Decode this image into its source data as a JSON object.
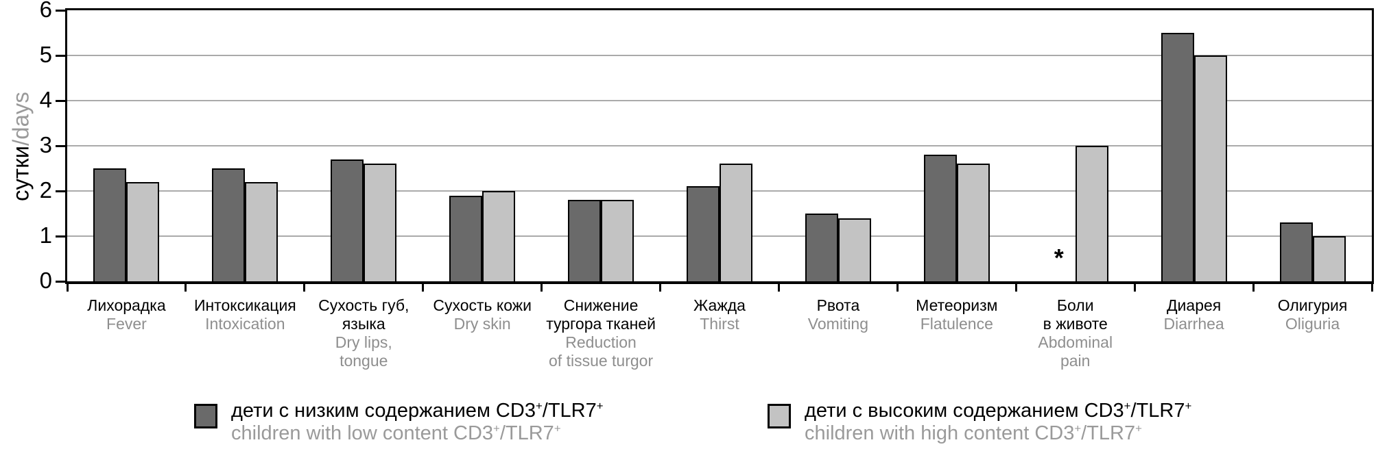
{
  "colors": {
    "series_low": "#6a6a6a",
    "series_high": "#c3c3c3",
    "grid": "#aaaaaa",
    "axis": "#000000",
    "text_primary": "#000000",
    "text_secondary": "#8e8e8e"
  },
  "y_axis": {
    "title_ru": "сутки",
    "title_en": "/days"
  },
  "chart_data": {
    "type": "bar",
    "ylim": [
      0,
      6
    ],
    "yticks": [
      0,
      1,
      2,
      3,
      4,
      5,
      6
    ],
    "grid": true,
    "legend_position": "bottom",
    "ylabel": "сутки/days",
    "categories": [
      {
        "ru": "Лихорадка",
        "en": "Fever"
      },
      {
        "ru": "Интоксикация",
        "en": "Intoxication"
      },
      {
        "ru": "Сухость губ,\nязыка",
        "en": "Dry lips,\ntongue"
      },
      {
        "ru": "Сухость кожи",
        "en": "Dry skin"
      },
      {
        "ru": "Снижение\nтургора тканей",
        "en": "Reduction\nof tissue turgor"
      },
      {
        "ru": "Жажда",
        "en": "Thirst"
      },
      {
        "ru": "Рвота",
        "en": "Vomiting"
      },
      {
        "ru": "Метеоризм",
        "en": "Flatulence"
      },
      {
        "ru": "Боли\nв животе",
        "en": "Abdominal\npain"
      },
      {
        "ru": "Диарея",
        "en": "Diarrhea"
      },
      {
        "ru": "Олигурия",
        "en": "Oliguria"
      }
    ],
    "series": [
      {
        "name_ru": "дети с низким содержанием CD3+/TLR7+",
        "name_en": "children with low content CD3+/TLR7+",
        "color": "#6a6a6a",
        "values": [
          2.5,
          2.5,
          2.7,
          1.9,
          1.8,
          2.1,
          1.5,
          2.8,
          null,
          5.5,
          1.3
        ]
      },
      {
        "name_ru": "дети с высоким содержанием CD3+/TLR7+",
        "name_en": "children with high content CD3+/TLR7+",
        "color": "#c3c3c3",
        "values": [
          2.2,
          2.2,
          2.6,
          2.0,
          1.8,
          2.6,
          1.4,
          2.6,
          3.0,
          5.0,
          1.0
        ]
      }
    ],
    "annotations": [
      {
        "text": "*",
        "series_index": 0,
        "category_index": 8
      }
    ]
  },
  "legend": {
    "entries": [
      {
        "ru_text": "дети с низким содержанием CD3",
        "ru_sup_a": "+",
        "ru_mid": "/TLR7",
        "ru_sup_b": "+",
        "en_text": "children with low content CD3",
        "en_sup_a": "+",
        "en_mid": "/TLR7",
        "en_sup_b": "+"
      },
      {
        "ru_text": "дети с высоким содержанием CD3",
        "ru_sup_a": "+",
        "ru_mid": "/TLR7",
        "ru_sup_b": "+",
        "en_text": "children with high content CD3",
        "en_sup_a": "+",
        "en_mid": "/TLR7",
        "en_sup_b": "+"
      }
    ]
  }
}
